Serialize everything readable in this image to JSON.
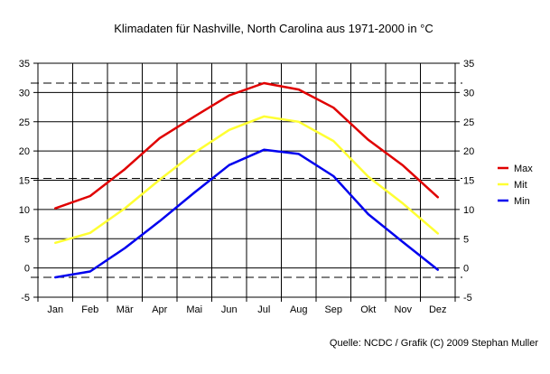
{
  "chart_data": {
    "type": "line",
    "title": "Klimadaten für Nashville, North Carolina aus 1971-2000 in °C",
    "xlabel": "",
    "ylabel": "",
    "categories": [
      "Jan",
      "Feb",
      "Mär",
      "Apr",
      "Mai",
      "Jun",
      "Jul",
      "Aug",
      "Sep",
      "Okt",
      "Nov",
      "Dez"
    ],
    "ylim": [
      -5,
      35
    ],
    "yticks": [
      "-5",
      "0",
      "5",
      "10",
      "15",
      "20",
      "25",
      "30",
      "35"
    ],
    "grid": true,
    "legend_position": "right",
    "series": [
      {
        "name": "Max",
        "color": "#e00000",
        "values": [
          10.2,
          12.3,
          16.9,
          22.2,
          25.9,
          29.5,
          31.6,
          30.5,
          27.4,
          21.9,
          17.5,
          12.1
        ]
      },
      {
        "name": "Mit",
        "color": "#ffff33",
        "values": [
          4.3,
          6.0,
          10.2,
          15.1,
          19.7,
          23.6,
          25.9,
          25.0,
          21.7,
          15.6,
          11.0,
          5.9
        ]
      },
      {
        "name": "Min",
        "color": "#0000ee",
        "values": [
          -1.6,
          -0.6,
          3.4,
          8.0,
          12.9,
          17.6,
          20.2,
          19.5,
          15.7,
          9.2,
          4.4,
          -0.3
        ]
      }
    ],
    "reference_lines": [
      31.6,
      15.3,
      -1.6
    ],
    "source": "Quelle: NCDC / Grafik (C) 2009 Stephan Muller"
  }
}
